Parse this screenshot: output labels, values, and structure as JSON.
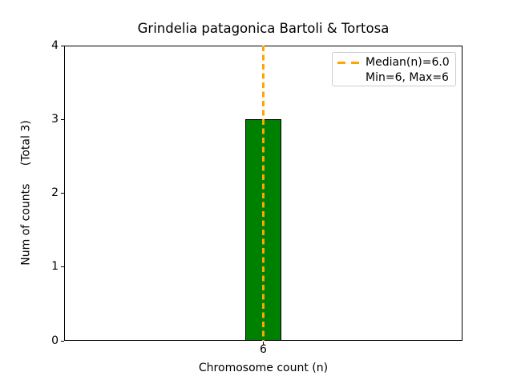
{
  "figure": {
    "title": "Grindelia patagonica Bartoli & Tortosa",
    "xlabel": "Chromosome count (n)",
    "ylabel": "Num of counts     (Total 3)"
  },
  "legend": {
    "position": "upper right",
    "entries": [
      {
        "label": "Median(n)=6.0",
        "marker": "orange-dashed-line"
      },
      {
        "label": "Min=6, Max=6",
        "marker": "none"
      }
    ]
  },
  "colors": {
    "bar_fill": "#008000",
    "bar_edge": "#000000",
    "median_line": "#FFA500",
    "spine": "#000000",
    "legend_border": "#cccccc"
  },
  "chart_data": {
    "type": "bar",
    "title": "Grindelia patagonica Bartoli & Tortosa",
    "xlabel": "Chromosome count (n)",
    "ylabel": "Num of counts     (Total 3)",
    "categories": [
      "6"
    ],
    "values": [
      3
    ],
    "ylim": [
      0,
      4
    ],
    "yticks": [
      0,
      1,
      2,
      3,
      4
    ],
    "grid": false,
    "legend_position": "upper right",
    "total_counts": 3,
    "median_line": {
      "x": 6,
      "median": 6.0,
      "min": 6,
      "max": 6,
      "color": "#FFA500",
      "style": "dashed"
    }
  }
}
